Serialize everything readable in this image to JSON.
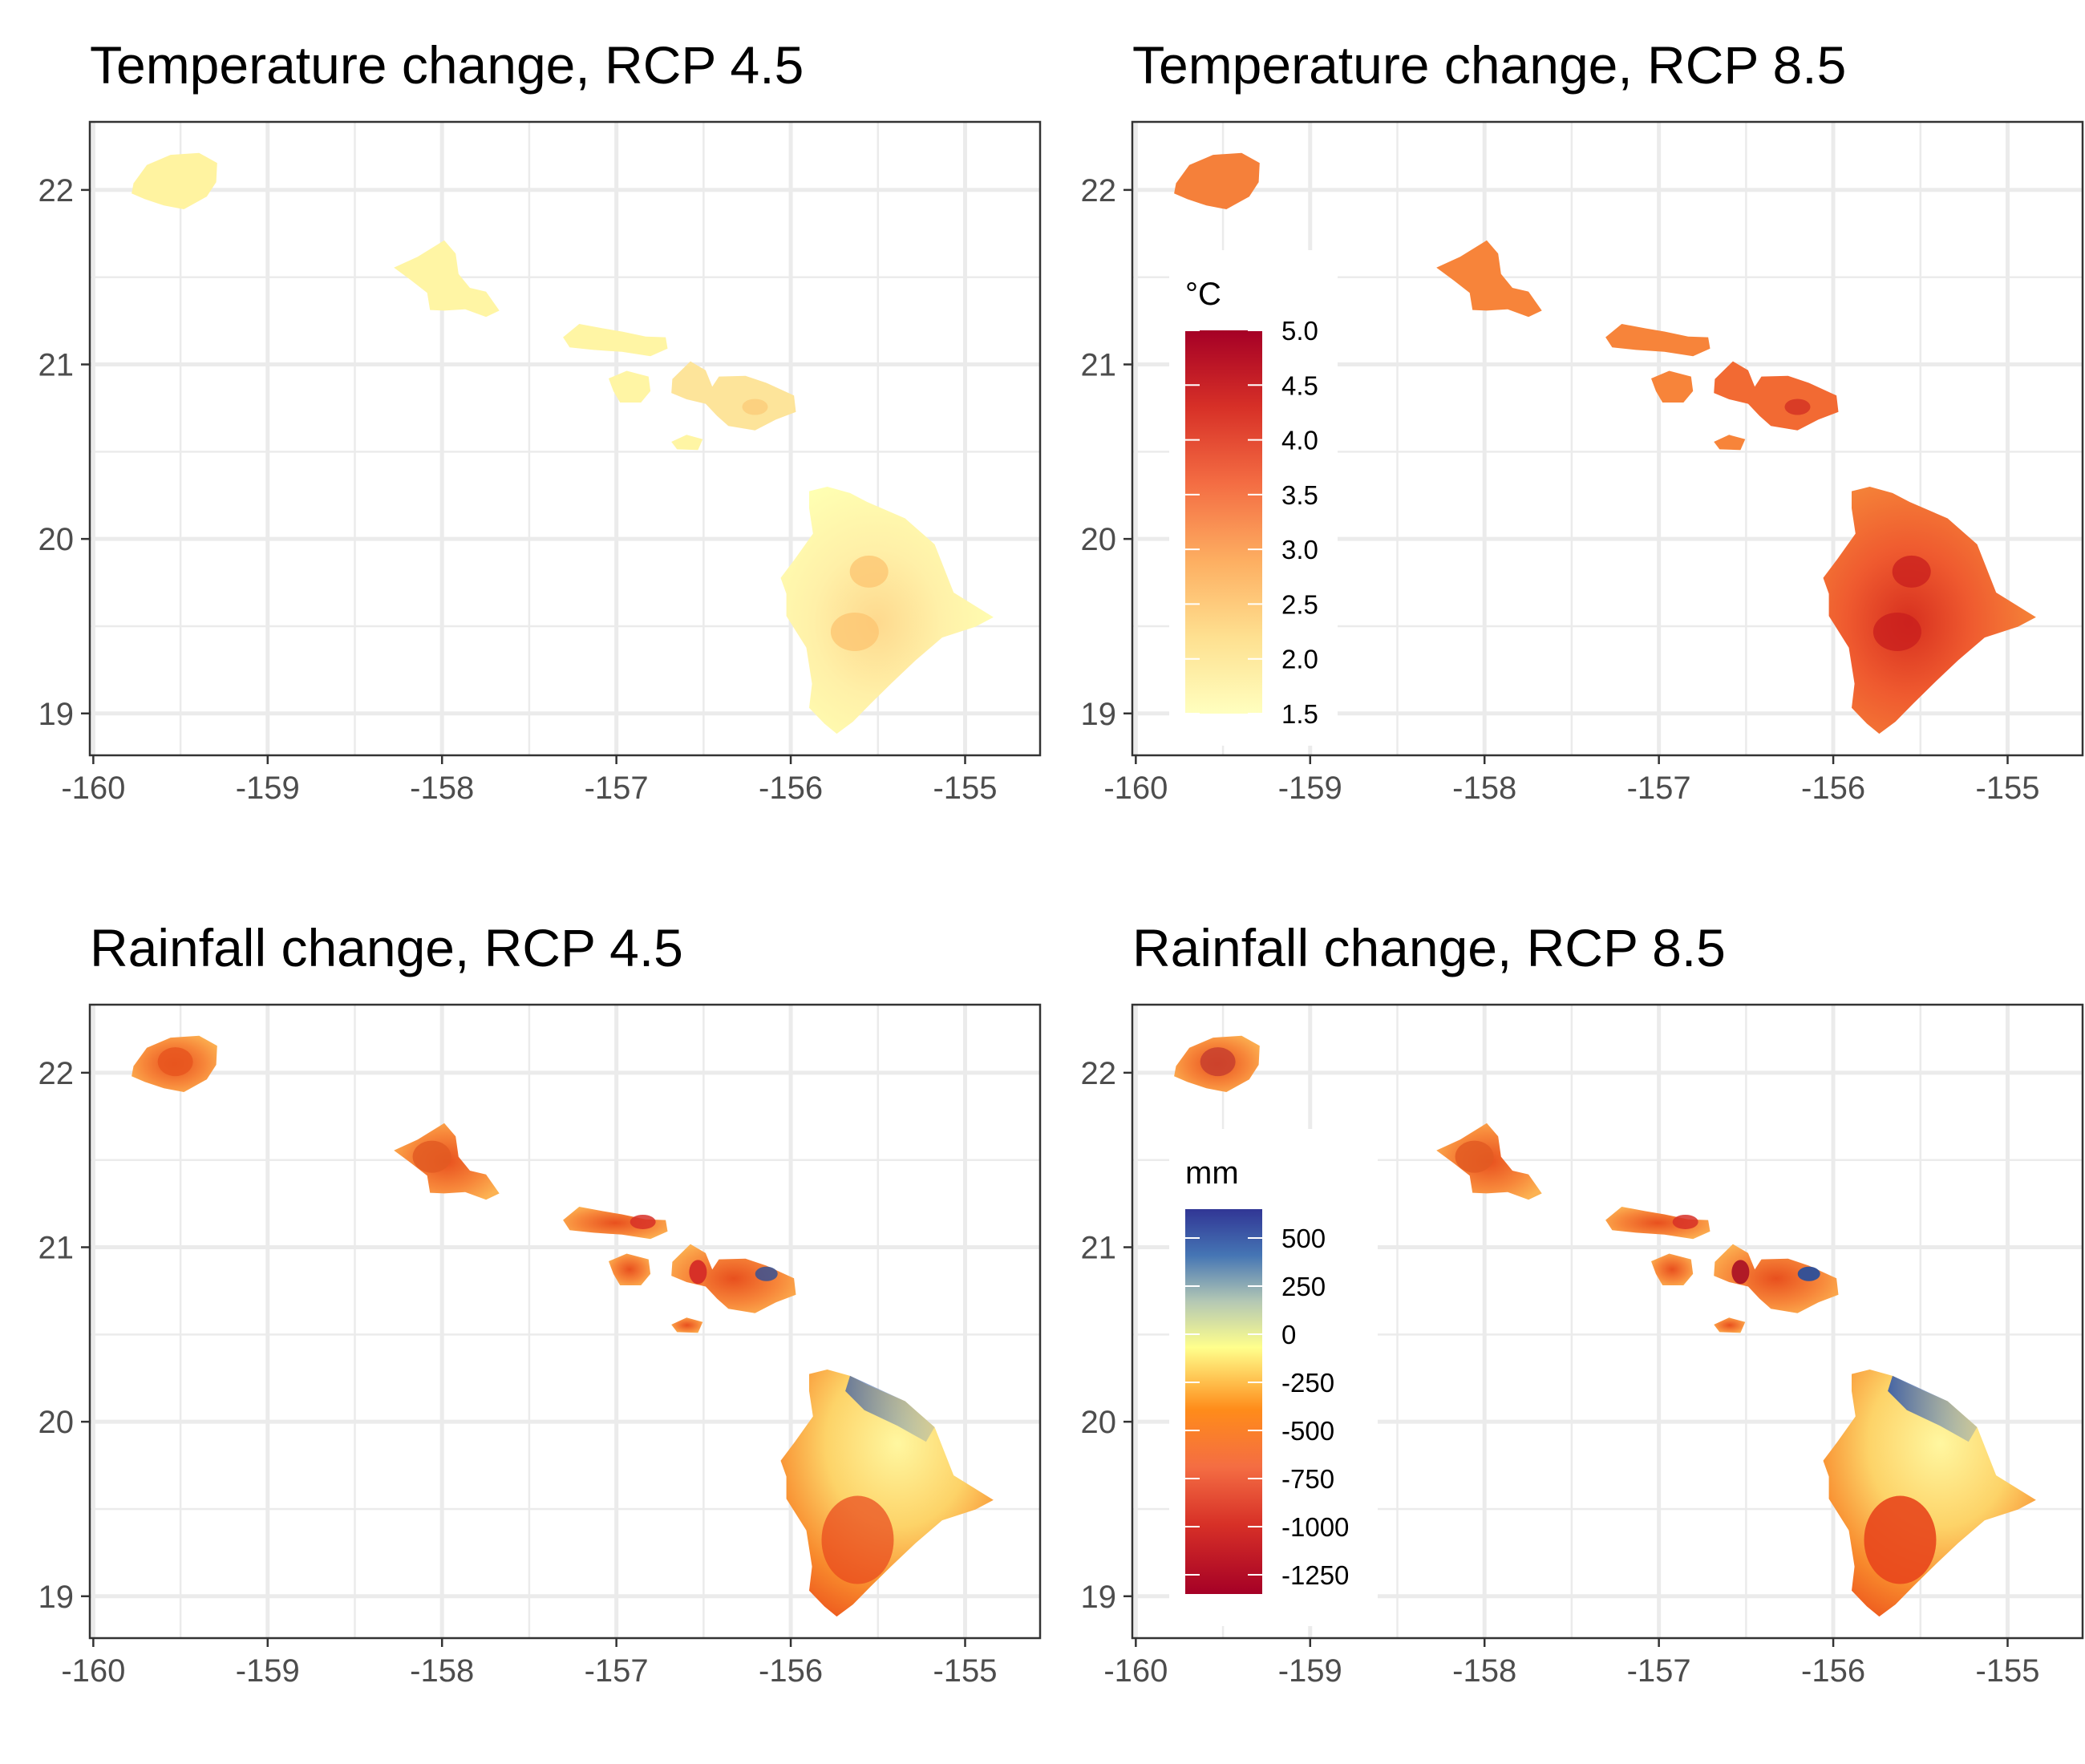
{
  "figure": {
    "panels": [
      {
        "id": "temp45",
        "title": "Temperature change, RCP 4.5",
        "variable": "temperature",
        "scenario": "RCP 4.5"
      },
      {
        "id": "temp85",
        "title": "Temperature change, RCP 8.5",
        "variable": "temperature",
        "scenario": "RCP 8.5"
      },
      {
        "id": "rain45",
        "title": "Rainfall change, RCP 4.5",
        "variable": "rainfall",
        "scenario": "RCP 4.5"
      },
      {
        "id": "rain85",
        "title": "Rainfall change, RCP 8.5",
        "variable": "rainfall",
        "scenario": "RCP 8.5"
      }
    ],
    "axes": {
      "x_ticks": [
        "-160",
        "-159",
        "-158",
        "-157",
        "-156",
        "-155"
      ],
      "y_ticks": [
        "22",
        "21",
        "20",
        "19"
      ],
      "xlim": [
        -160.02,
        -154.57
      ],
      "ylim": [
        18.76,
        22.39
      ]
    },
    "legends": {
      "temperature": {
        "title": "°C",
        "labels": [
          "5.0",
          "4.5",
          "4.0",
          "3.5",
          "3.0",
          "2.5",
          "2.0",
          "1.5"
        ],
        "range": [
          1.5,
          5.0
        ],
        "colors": [
          "#ffffbf",
          "#fee090",
          "#fdae61",
          "#f46d43",
          "#d73027",
          "#a50026"
        ],
        "placement": "inside-left"
      },
      "rainfall": {
        "title": "mm",
        "labels": [
          "500",
          "250",
          "0",
          "-250",
          "-500",
          "-750",
          "-1000",
          "-1250"
        ],
        "range": [
          -1350,
          650
        ],
        "colors": [
          "#a50026",
          "#d73027",
          "#f46d43",
          "#ff8c1a",
          "#ffff8c",
          "#b4c8b4",
          "#4575b4",
          "#313695"
        ],
        "placement": "inside-left"
      }
    },
    "islands": [
      "Kauai",
      "Oahu",
      "Molokai",
      "Lanai",
      "Maui",
      "Kahoolawe",
      "Hawaii"
    ]
  }
}
